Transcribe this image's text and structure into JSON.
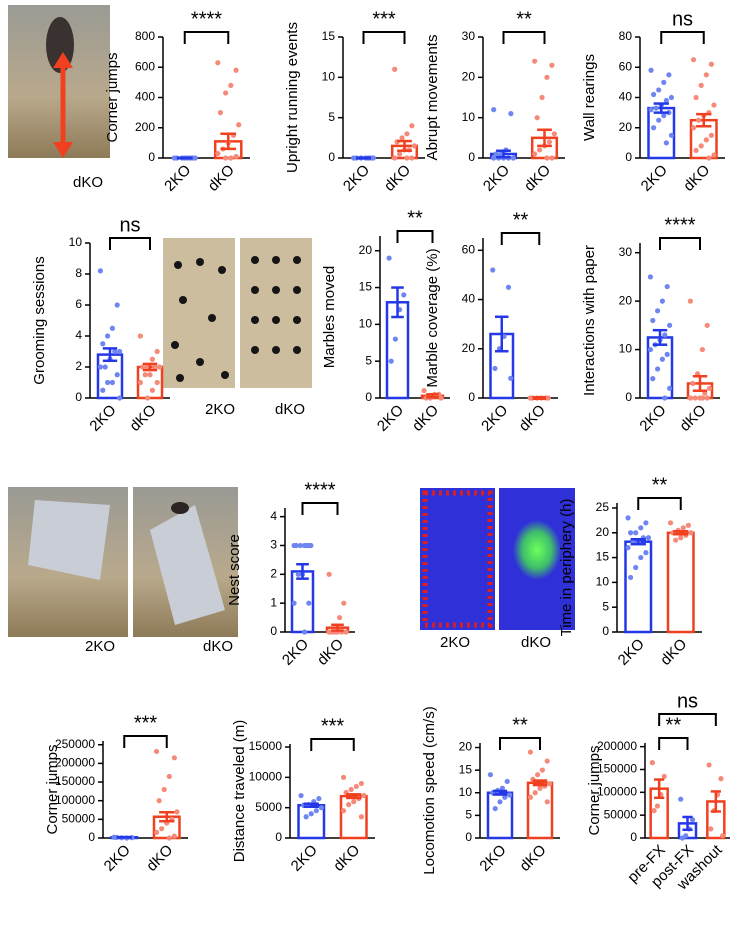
{
  "chart_data": [
    {
      "type": "bar",
      "ylabel": "Corner jumps",
      "categories": [
        "2KO",
        "dKO"
      ],
      "values": [
        0,
        110
      ],
      "errors": [
        2,
        50
      ],
      "colors": [
        "#2438e8",
        "#f0401f"
      ],
      "point_colors": [
        "#6f86f2",
        "#f58a78"
      ],
      "points": [
        [
          0,
          0,
          0,
          0,
          0,
          0,
          0,
          0
        ],
        [
          630,
          580,
          480,
          430,
          300,
          220,
          150,
          100,
          60,
          30,
          10,
          0,
          0
        ]
      ],
      "ylim": [
        0,
        800
      ],
      "yticks": [
        0,
        200,
        400,
        600,
        800
      ],
      "annotations": [
        "****"
      ]
    },
    {
      "type": "bar",
      "ylabel": "Upright running events",
      "categories": [
        "2KO",
        "dKO"
      ],
      "values": [
        0,
        1.5
      ],
      "errors": [
        0.05,
        0.6
      ],
      "colors": [
        "#2438e8",
        "#f0401f"
      ],
      "point_colors": [
        "#6f86f2",
        "#f58a78"
      ],
      "points": [
        [
          0,
          0,
          0,
          0,
          0,
          0,
          0
        ],
        [
          11,
          4,
          3,
          2.5,
          2,
          1.5,
          1,
          1,
          0.5,
          0,
          0,
          0
        ]
      ],
      "ylim": [
        0,
        15
      ],
      "yticks": [
        0,
        5,
        10,
        15
      ],
      "annotations": [
        "***"
      ]
    },
    {
      "type": "bar",
      "ylabel": "Abrupt movements",
      "categories": [
        "2KO",
        "dKO"
      ],
      "values": [
        1,
        5
      ],
      "errors": [
        0.8,
        2
      ],
      "colors": [
        "#2438e8",
        "#f0401f"
      ],
      "point_colors": [
        "#6f86f2",
        "#f58a78"
      ],
      "points": [
        [
          12,
          11,
          2,
          1,
          1,
          0,
          0,
          0,
          0,
          0
        ],
        [
          24,
          23,
          20,
          15,
          10,
          6,
          4,
          3,
          2,
          1,
          0,
          0
        ]
      ],
      "ylim": [
        0,
        30
      ],
      "yticks": [
        0,
        10,
        20,
        30
      ],
      "annotations": [
        "**"
      ]
    },
    {
      "type": "bar",
      "ylabel": "Wall rearings",
      "categories": [
        "2KO",
        "dKO"
      ],
      "values": [
        33,
        25
      ],
      "errors": [
        3,
        4
      ],
      "colors": [
        "#2438e8",
        "#f0401f"
      ],
      "point_colors": [
        "#6f86f2",
        "#f58a78"
      ],
      "points": [
        [
          58,
          55,
          50,
          45,
          42,
          40,
          38,
          35,
          33,
          32,
          30,
          28,
          25,
          20,
          15,
          10
        ],
        [
          65,
          62,
          55,
          48,
          40,
          35,
          30,
          28,
          25,
          20,
          15,
          12,
          8,
          5,
          2,
          0
        ]
      ],
      "ylim": [
        0,
        80
      ],
      "yticks": [
        0,
        20,
        40,
        60,
        80
      ],
      "annotations": [
        "ns"
      ]
    },
    {
      "type": "bar",
      "ylabel": "Grooming sessions",
      "categories": [
        "2KO",
        "dKO"
      ],
      "values": [
        2.8,
        2
      ],
      "errors": [
        0.4,
        0.2
      ],
      "colors": [
        "#2438e8",
        "#f0401f"
      ],
      "point_colors": [
        "#6f86f2",
        "#f58a78"
      ],
      "points": [
        [
          8.2,
          6,
          4.5,
          4,
          3.5,
          3,
          3,
          2.5,
          2,
          2,
          1.5,
          1,
          1,
          0.5,
          0
        ],
        [
          4,
          3,
          2.5,
          2,
          2,
          2,
          2,
          1.5,
          1.5,
          1,
          1,
          0.5,
          0
        ]
      ],
      "ylim": [
        0,
        10
      ],
      "yticks": [
        0,
        2,
        4,
        6,
        8,
        10
      ],
      "annotations": [
        "ns"
      ]
    },
    {
      "type": "bar",
      "ylabel": "Marbles moved",
      "categories": [
        "2KO",
        "dKO"
      ],
      "values": [
        13,
        0.3
      ],
      "errors": [
        2,
        0.2
      ],
      "colors": [
        "#2438e8",
        "#f0401f"
      ],
      "point_colors": [
        "#6f86f2",
        "#f58a78"
      ],
      "points": [
        [
          19,
          14,
          12,
          8,
          5
        ],
        [
          1,
          0.5,
          0.5,
          0,
          0,
          0
        ]
      ],
      "ylim": [
        0,
        22
      ],
      "yticks": [
        0,
        5,
        10,
        15,
        20
      ],
      "annotations": [
        "**"
      ]
    },
    {
      "type": "bar",
      "ylabel": "Marble coverage (%)",
      "categories": [
        "2KO",
        "dKO"
      ],
      "values": [
        26,
        0
      ],
      "errors": [
        7,
        0.3
      ],
      "colors": [
        "#2438e8",
        "#f0401f"
      ],
      "point_colors": [
        "#6f86f2",
        "#f58a78"
      ],
      "points": [
        [
          52,
          45,
          25,
          20,
          12,
          8
        ],
        [
          0,
          0,
          0,
          0,
          0,
          0
        ]
      ],
      "ylim": [
        0,
        65
      ],
      "yticks": [
        0,
        20,
        40,
        60
      ],
      "annotations": [
        "**"
      ]
    },
    {
      "type": "bar",
      "ylabel": "Interactions with paper",
      "categories": [
        "2KO",
        "dKO"
      ],
      "values": [
        12.5,
        3
      ],
      "errors": [
        1.5,
        1.5
      ],
      "colors": [
        "#2438e8",
        "#f0401f"
      ],
      "point_colors": [
        "#6f86f2",
        "#f58a78"
      ],
      "points": [
        [
          25,
          23,
          20,
          18,
          16,
          15,
          13,
          12,
          11,
          10,
          9,
          8,
          6,
          4,
          2,
          0
        ],
        [
          20,
          15,
          10,
          5,
          3,
          2,
          1,
          0,
          0,
          0,
          0,
          0
        ]
      ],
      "ylim": [
        0,
        32
      ],
      "yticks": [
        0,
        10,
        20,
        30
      ],
      "annotations": [
        "****"
      ]
    },
    {
      "type": "bar",
      "ylabel": "Nest score",
      "categories": [
        "2KO",
        "dKO"
      ],
      "values": [
        2.1,
        0.15
      ],
      "errors": [
        0.25,
        0.1
      ],
      "colors": [
        "#2438e8",
        "#f0401f"
      ],
      "point_colors": [
        "#6f86f2",
        "#f58a78"
      ],
      "points": [
        [
          3,
          3,
          3,
          3,
          3,
          3,
          3,
          2,
          2,
          1,
          1,
          0
        ],
        [
          2,
          1,
          0.5,
          0,
          0,
          0,
          0,
          0,
          0,
          0
        ]
      ],
      "ylim": [
        0,
        4.3
      ],
      "yticks": [
        0,
        1,
        2,
        3,
        4
      ],
      "annotations": [
        "****"
      ]
    },
    {
      "type": "bar",
      "ylabel": "Time in periphery (h)",
      "categories": [
        "2KO",
        "dKO"
      ],
      "values": [
        18.2,
        20
      ],
      "errors": [
        0.5,
        0.3
      ],
      "colors": [
        "#2438e8",
        "#f0401f"
      ],
      "point_colors": [
        "#6f86f2",
        "#f58a78"
      ],
      "points": [
        [
          23,
          22,
          21,
          20,
          20,
          19,
          19,
          18,
          18,
          17,
          16,
          15,
          13,
          11
        ],
        [
          22,
          21.5,
          21,
          20.5,
          20,
          20,
          19.5,
          19,
          18.5
        ]
      ],
      "ylim": [
        0,
        26
      ],
      "yticks": [
        0,
        5,
        10,
        15,
        20,
        25
      ],
      "annotations": [
        "**"
      ]
    },
    {
      "type": "bar",
      "ylabel": "Corner jumps",
      "categories": [
        "2KO",
        "dKO"
      ],
      "values": [
        2000,
        57000
      ],
      "errors": [
        500,
        12000
      ],
      "colors": [
        "#2438e8",
        "#f0401f"
      ],
      "point_colors": [
        "#6f86f2",
        "#f58a78"
      ],
      "points": [
        [
          2000,
          1000,
          0,
          500,
          1500
        ],
        [
          232000,
          215000,
          165000,
          130000,
          100000,
          70000,
          50000,
          40000,
          25000,
          15000,
          5000,
          0
        ]
      ],
      "ylim": [
        0,
        260000
      ],
      "yticks": [
        0,
        50000,
        100000,
        150000,
        200000,
        250000
      ],
      "annotations": [
        "***"
      ]
    },
    {
      "type": "bar",
      "ylabel": "Distance traveled (m)",
      "categories": [
        "2KO",
        "dKO"
      ],
      "values": [
        5400,
        6900
      ],
      "errors": [
        250,
        300
      ],
      "colors": [
        "#2438e8",
        "#f0401f"
      ],
      "point_colors": [
        "#6f86f2",
        "#f58a78"
      ],
      "points": [
        [
          7000,
          6500,
          6000,
          5500,
          5400,
          5000,
          4500,
          4000,
          3500
        ],
        [
          10000,
          9000,
          8500,
          8000,
          7500,
          7000,
          6500,
          6000,
          5500,
          4500,
          3500
        ]
      ],
      "ylim": [
        0,
        15500
      ],
      "yticks": [
        0,
        5000,
        10000,
        15000
      ],
      "annotations": [
        "***"
      ]
    },
    {
      "type": "bar",
      "ylabel": "Locomotion speed (cm/s)",
      "categories": [
        "2KO",
        "dKO"
      ],
      "values": [
        10,
        12.2
      ],
      "errors": [
        0.4,
        0.5
      ],
      "colors": [
        "#2438e8",
        "#f0401f"
      ],
      "point_colors": [
        "#6f86f2",
        "#f58a78"
      ],
      "points": [
        [
          14,
          12.5,
          11,
          10.5,
          10,
          9.5,
          9,
          8,
          6.5
        ],
        [
          19,
          17,
          15,
          14,
          13,
          12,
          11.5,
          11,
          10,
          9,
          8
        ]
      ],
      "ylim": [
        0,
        21
      ],
      "yticks": [
        0,
        5,
        10,
        15,
        20
      ],
      "annotations": [
        "**"
      ]
    },
    {
      "type": "bar",
      "ylabel": "Corner jumps",
      "categories": [
        "pre-FX",
        "post-FX",
        "washout"
      ],
      "values": [
        108000,
        32000,
        80000
      ],
      "errors": [
        20000,
        14000,
        22000
      ],
      "colors": [
        "#f0401f",
        "#2438e8",
        "#f0401f"
      ],
      "point_colors": [
        "#f58a78",
        "#6f86f2",
        "#f58a78"
      ],
      "points": [
        [
          165000,
          135000,
          95000,
          70000,
          60000
        ],
        [
          85000,
          40000,
          20000,
          5000,
          0
        ],
        [
          160000,
          130000,
          95000,
          60000,
          20000,
          5000
        ]
      ],
      "ylim": [
        0,
        208000
      ],
      "yticks": [
        0,
        50000,
        100000,
        150000,
        200000
      ],
      "annotations": [
        "**",
        "ns"
      ]
    }
  ],
  "images": [
    {
      "labels": [
        "dKO"
      ]
    },
    {
      "labels": [
        "2KO",
        "dKO"
      ]
    },
    {
      "labels": [
        "2KO",
        "dKO"
      ]
    },
    {
      "labels": [
        "2KO",
        "dKO"
      ]
    }
  ]
}
